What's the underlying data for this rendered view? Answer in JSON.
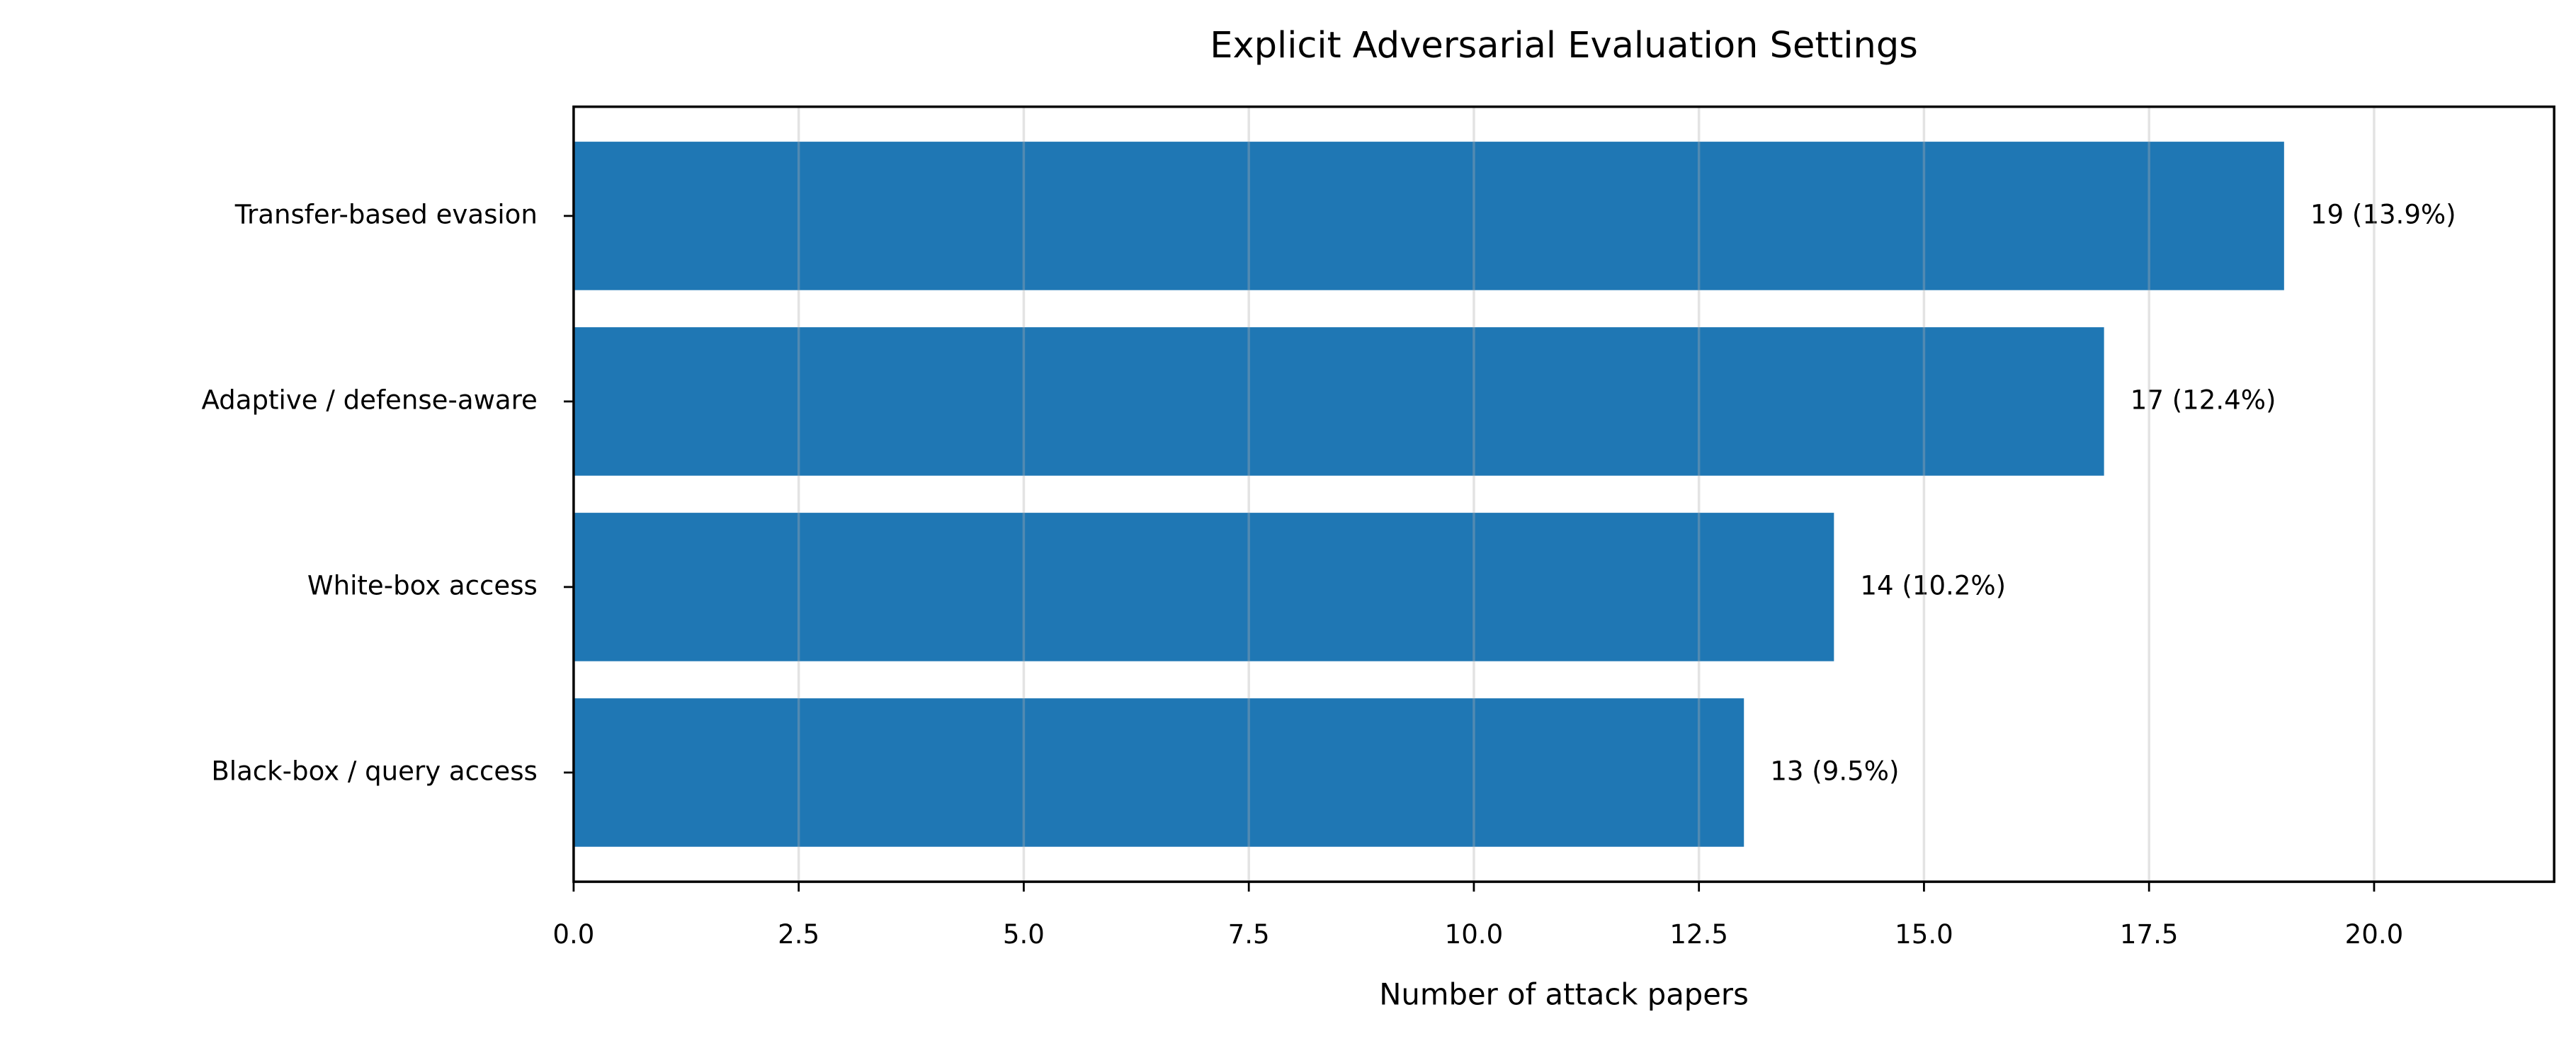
{
  "chart_data": {
    "type": "barh",
    "title": "Explicit Adversarial Evaluation Settings",
    "xlabel": "Number of attack papers",
    "categories": [
      "Transfer-based evasion",
      "Adaptive / defense-aware",
      "White-box access",
      "Black-box / query access"
    ],
    "values": [
      19,
      17,
      14,
      13
    ],
    "value_labels": [
      "19 (13.9%)",
      "17 (12.4%)",
      "14 (10.2%)",
      "13 (9.5%)"
    ],
    "color": "#1f77b4",
    "xlim": [
      0,
      22
    ],
    "xticks": [
      {
        "value": 0,
        "label": "0.0"
      },
      2.5,
      {
        "value": 5,
        "label": "5.0"
      },
      7.5,
      {
        "value": 10,
        "label": "10.0"
      },
      12.5,
      {
        "value": 15,
        "label": "15.0"
      },
      17.5,
      {
        "value": 20,
        "label": "20.0"
      }
    ],
    "grid": true
  }
}
